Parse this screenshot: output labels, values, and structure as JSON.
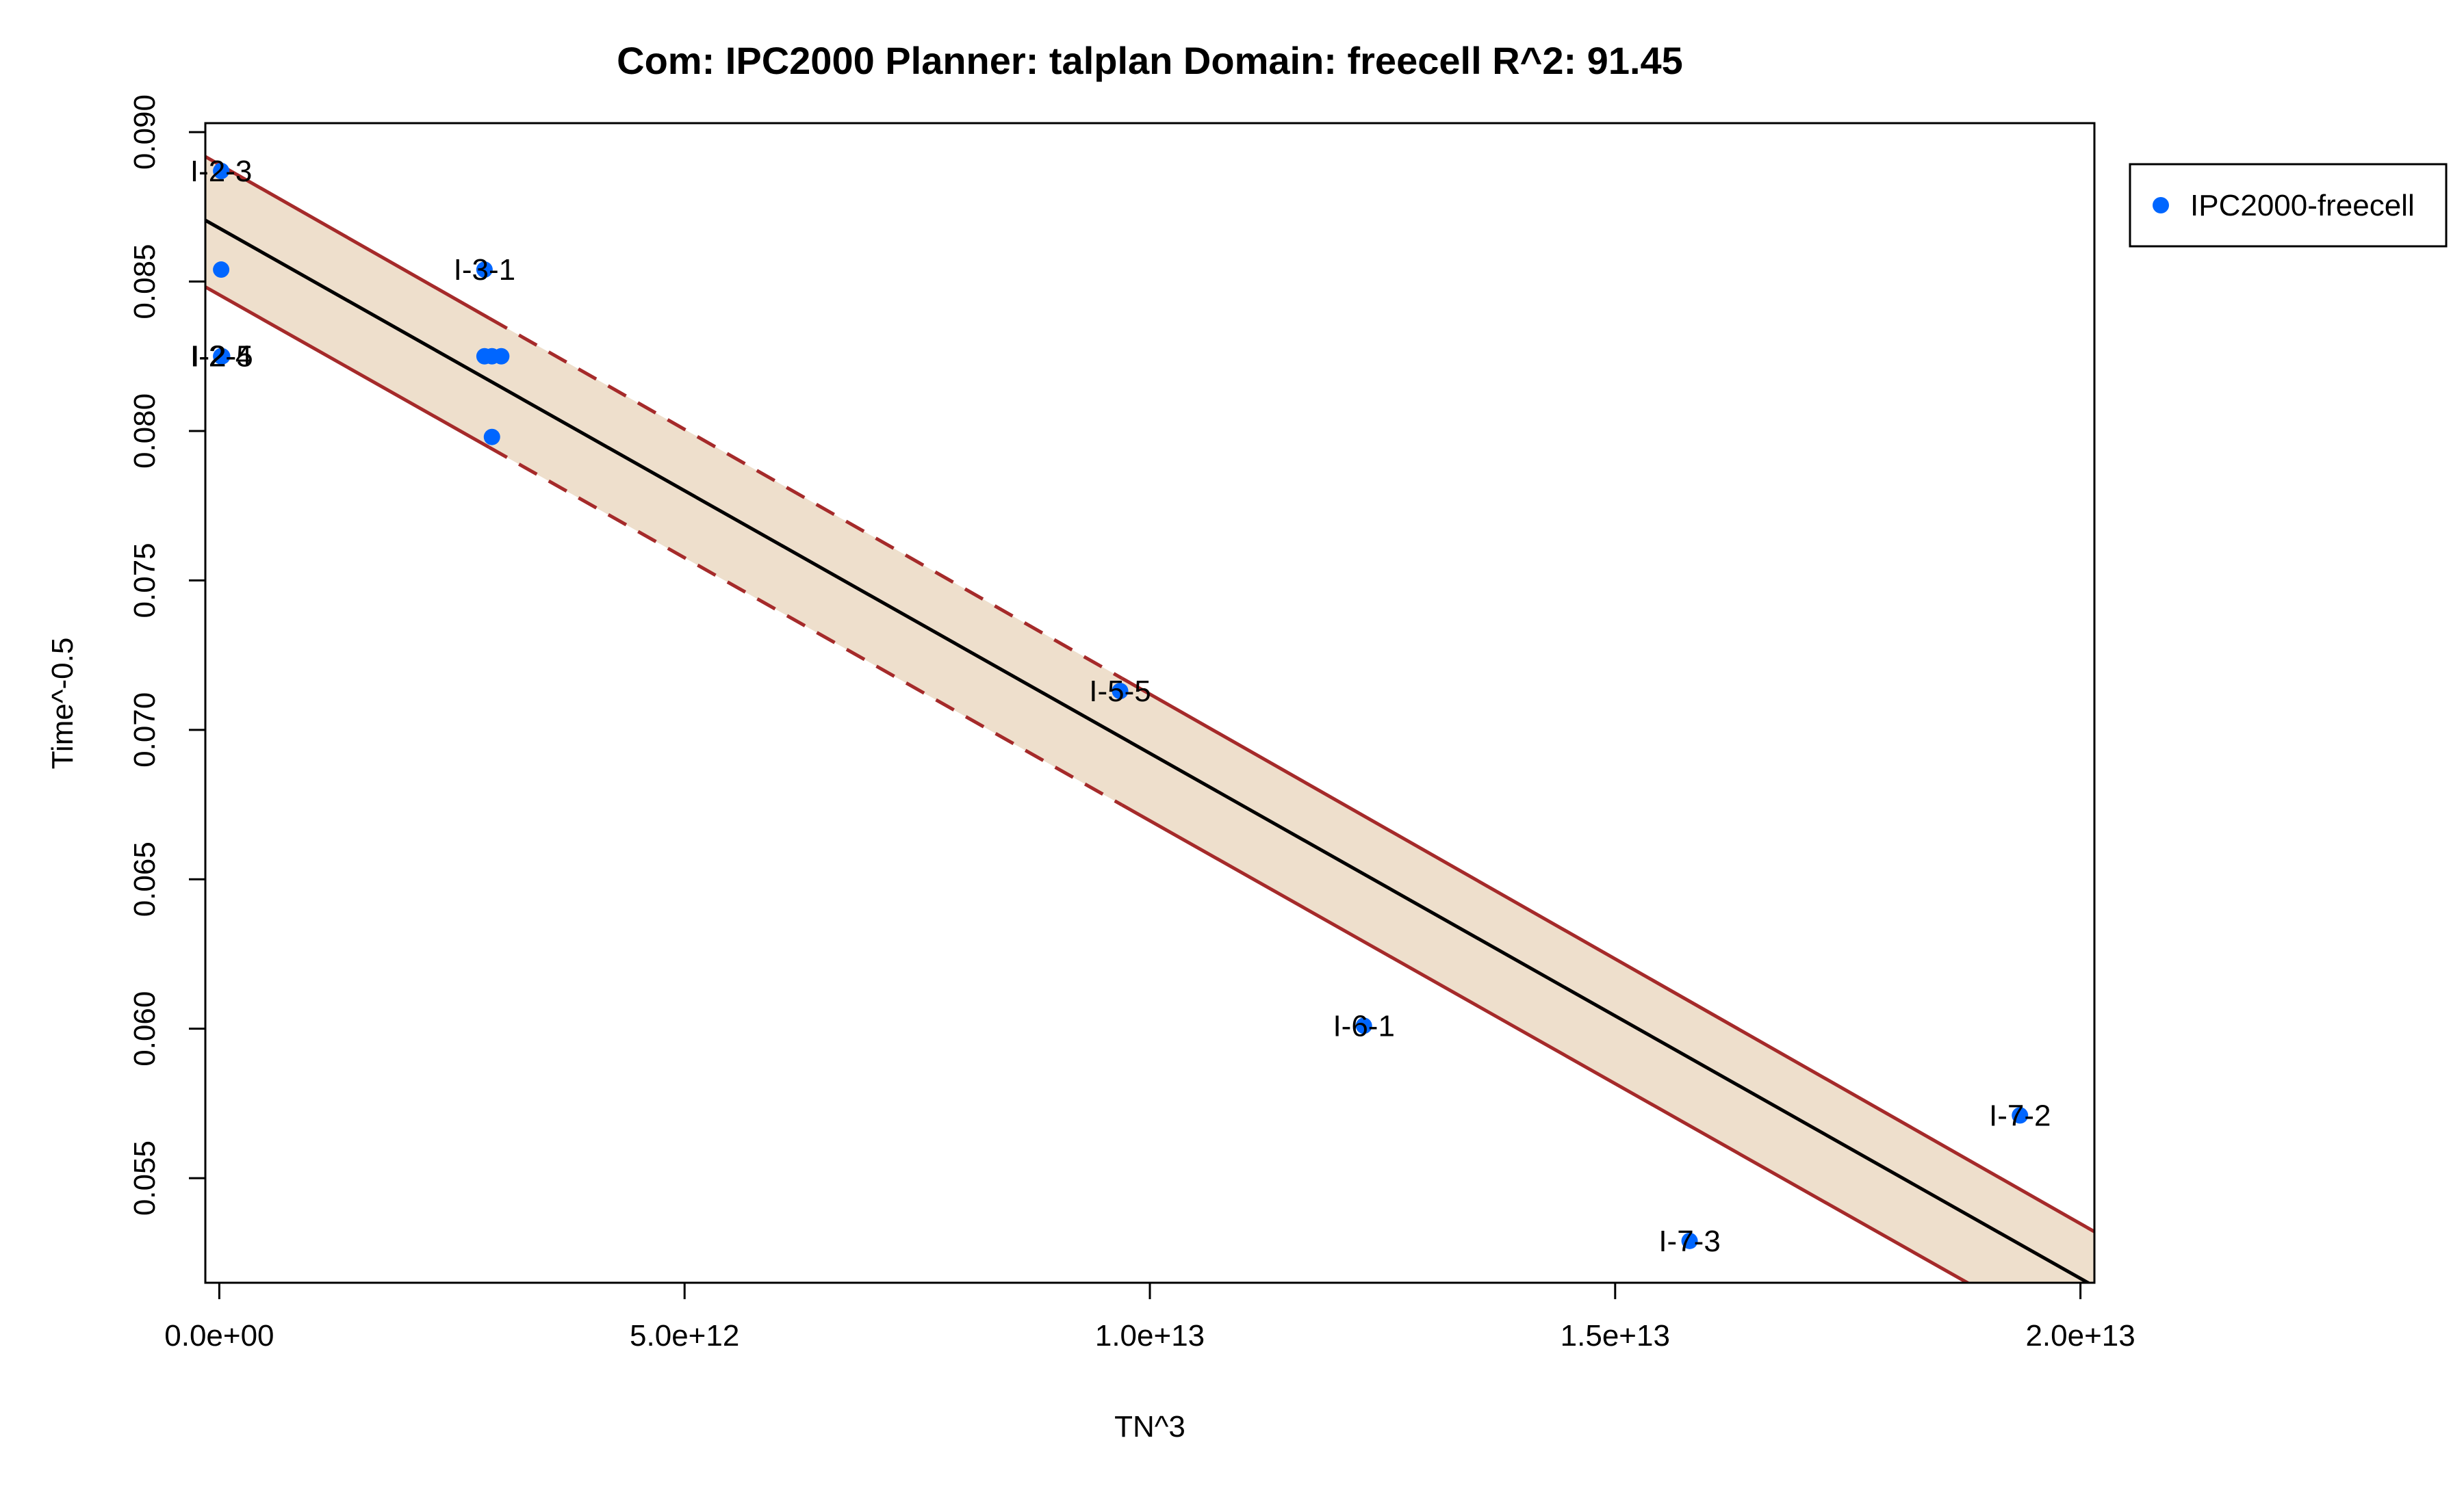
{
  "chart_data": {
    "type": "scatter",
    "title": "Com: IPC2000 Planner: talplan Domain: freecell R^2: 91.45",
    "xlabel": "TN^3",
    "ylabel": "Time^-0.5",
    "xlim": [
      -150000000000.0,
      20150000000000.0
    ],
    "ylim": [
      0.0515,
      0.0903
    ],
    "x_ticks": [
      0,
      5000000000000.0,
      10000000000000.0,
      15000000000000.0,
      20000000000000.0
    ],
    "x_tick_labels": [
      "0.0e+00",
      "5.0e+12",
      "1.0e+13",
      "1.5e+13",
      "2.0e+13"
    ],
    "y_ticks": [
      0.055,
      0.06,
      0.065,
      0.07,
      0.075,
      0.08,
      0.085,
      0.09
    ],
    "y_tick_labels": [
      "0.055",
      "0.060",
      "0.065",
      "0.070",
      "0.075",
      "0.080",
      "0.085",
      "0.090"
    ],
    "grid": false,
    "legend": {
      "position": "outside-top-right",
      "entries": [
        {
          "label": "IPC2000-freecell",
          "color": "#0066ff"
        }
      ]
    },
    "series": [
      {
        "name": "IPC2000-freecell",
        "color": "#0066ff",
        "points": [
          {
            "x": 20000000000.0,
            "y": 0.0887,
            "label": "I-2-3"
          },
          {
            "x": 20000000000.0,
            "y": 0.0854,
            "label": ""
          },
          {
            "x": 20000000000.0,
            "y": 0.0825,
            "label": "I-2-4"
          },
          {
            "x": 30000000000.0,
            "y": 0.0825,
            "label": "I-2-5"
          },
          {
            "x": 2850000000000.0,
            "y": 0.0854,
            "label": "I-3-1"
          },
          {
            "x": 2850000000000.0,
            "y": 0.0825,
            "label": ""
          },
          {
            "x": 2930000000000.0,
            "y": 0.0825,
            "label": ""
          },
          {
            "x": 3030000000000.0,
            "y": 0.0825,
            "label": ""
          },
          {
            "x": 2930000000000.0,
            "y": 0.0798,
            "label": ""
          },
          {
            "x": 9680000000000.0,
            "y": 0.0713,
            "label": "I-5-5"
          },
          {
            "x": 12300000000000.0,
            "y": 0.0601,
            "label": "I-6-1"
          },
          {
            "x": 15800000000000.0,
            "y": 0.0529,
            "label": "I-7-3"
          },
          {
            "x": 19350000000000.0,
            "y": 0.0571,
            "label": "I-7-2"
          }
        ]
      }
    ],
    "regression": {
      "fit_line": {
        "x": [
          -150000000000.0,
          20150000000000.0
        ],
        "y": [
          0.08705,
          0.05138
        ]
      },
      "upper_bound": {
        "x": [
          -150000000000.0,
          20150000000000.0
        ],
        "y": [
          0.08918,
          0.05321
        ]
      },
      "lower_bound": {
        "x": [
          -150000000000.0,
          20150000000000.0
        ],
        "y": [
          0.08482,
          0.0491
        ]
      },
      "dashed_range": [
        2900000000000.0,
        9700000000000.0
      ],
      "fill_color": "#eedfcc",
      "bound_color": "#a52a2a",
      "fit_color": "#000000"
    }
  }
}
